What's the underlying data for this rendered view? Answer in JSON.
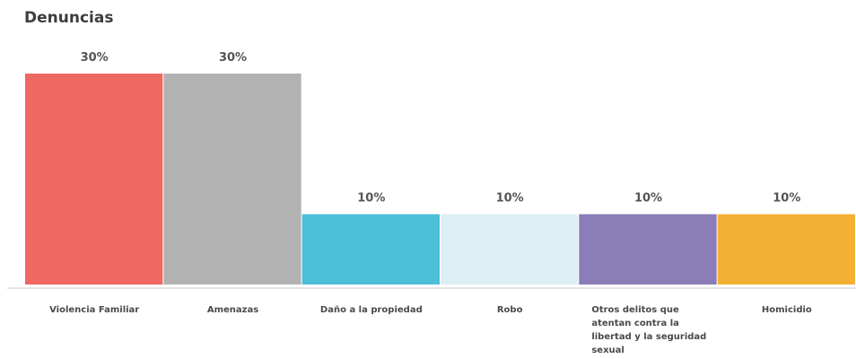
{
  "chart_data": {
    "type": "bar",
    "title": "Denuncias",
    "categories": [
      "Violencia Familiar",
      "Amenazas",
      "Daño a la propiedad",
      "Robo",
      "Otros delitos que atentan contra la libertad  y la seguridad sexual",
      "Homicidio"
    ],
    "values": [
      30,
      30,
      10,
      10,
      10,
      10
    ],
    "value_labels": [
      "30%",
      "30%",
      "10%",
      "10%",
      "10%",
      "10%"
    ],
    "colors": [
      "#ef6862",
      "#b2b2b2",
      "#4bbfd7",
      "#dceff4",
      "#8a7db8",
      "#f3b032"
    ],
    "unit": "%",
    "ylim": [
      0,
      30
    ],
    "grid": false,
    "legend": "none"
  }
}
